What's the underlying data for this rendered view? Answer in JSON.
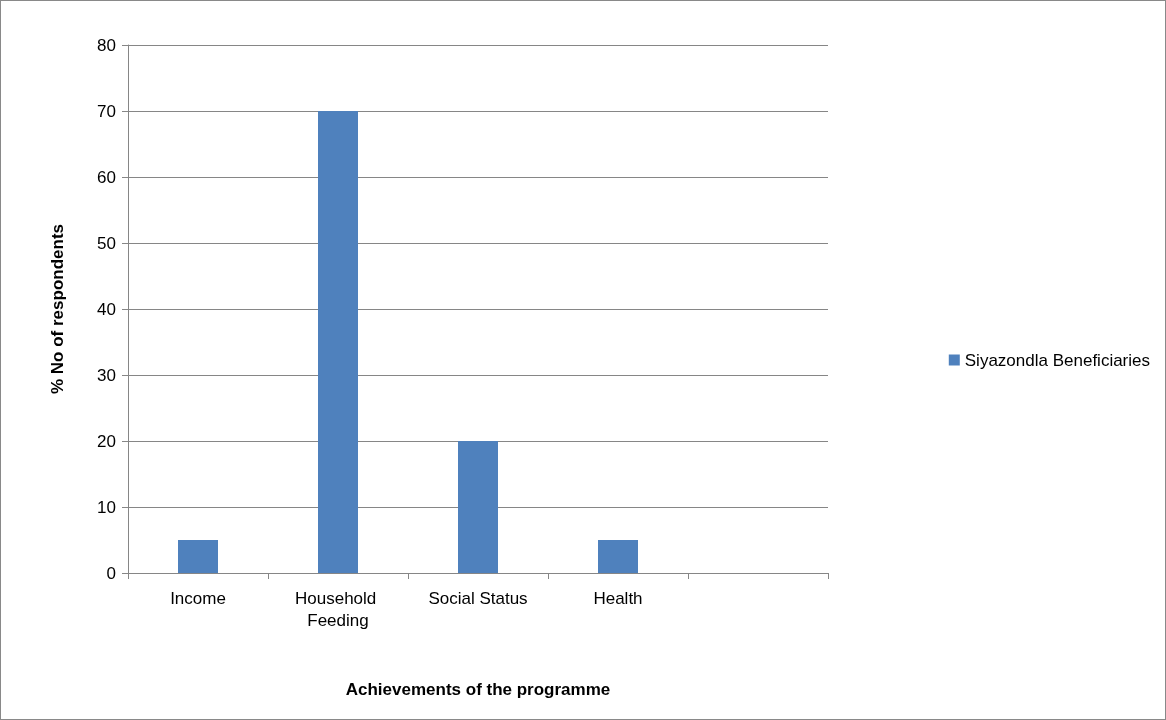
{
  "chart_data": {
    "type": "bar",
    "xlabel": "Achievements of the programme",
    "ylabel": "% No of respondents",
    "categories": [
      "Income",
      "Household Feeding",
      "Social Status",
      "Health",
      null
    ],
    "series": [
      {
        "name": "Siyazondla Beneficiaries",
        "color": "#4f81bd",
        "values": [
          5,
          70,
          20,
          5,
          null
        ]
      }
    ],
    "ylim": [
      0,
      80
    ],
    "yticks": [
      0,
      10,
      20,
      30,
      40,
      50,
      60,
      70,
      80
    ],
    "grid": "y",
    "legend": "right"
  }
}
